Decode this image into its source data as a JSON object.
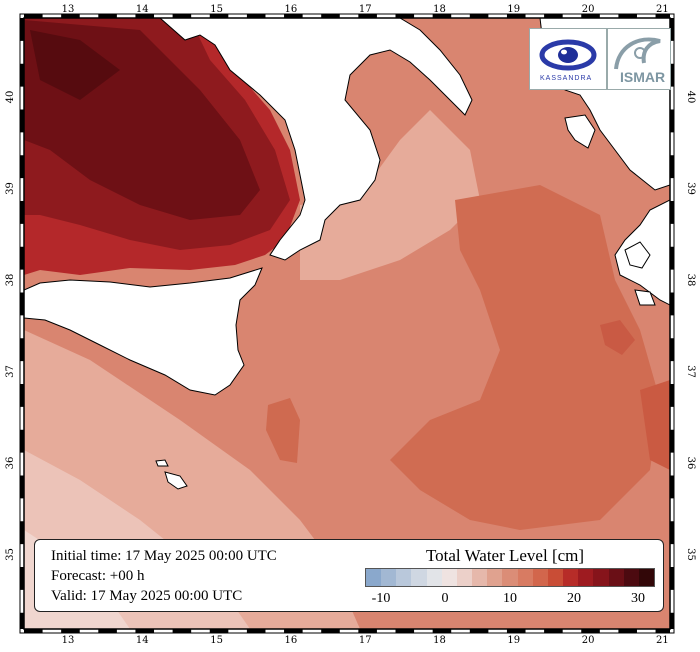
{
  "map": {
    "lon_ticks": [
      "13",
      "14",
      "15",
      "16",
      "17",
      "18",
      "19",
      "20",
      "21"
    ],
    "lat_ticks": [
      "40",
      "39",
      "38",
      "37",
      "36",
      "35"
    ]
  },
  "info": {
    "initial_time": "Initial time: 17 May 2025 00:00 UTC",
    "forecast": "Forecast: +00 h",
    "valid": "Valid: 17 May 2025 00:00 UTC"
  },
  "colorbar": {
    "title": "Total Water Level [cm]",
    "labels": [
      "-10",
      "0",
      "10",
      "20",
      "30"
    ],
    "colors": [
      "#8aa8cc",
      "#a2b8d3",
      "#b9c8db",
      "#cfd7e2",
      "#e2e4e8",
      "#efe3e1",
      "#ecd0c9",
      "#e6b8ab",
      "#e0a28f",
      "#db8d77",
      "#d87b62",
      "#d2664c",
      "#c94d36",
      "#b72c28",
      "#9e1b20",
      "#86141b",
      "#6a0f16",
      "#4c0a10",
      "#320708"
    ]
  },
  "logos": {
    "kassandra": "KASSANDRA",
    "ismar": "ISMAR"
  }
}
